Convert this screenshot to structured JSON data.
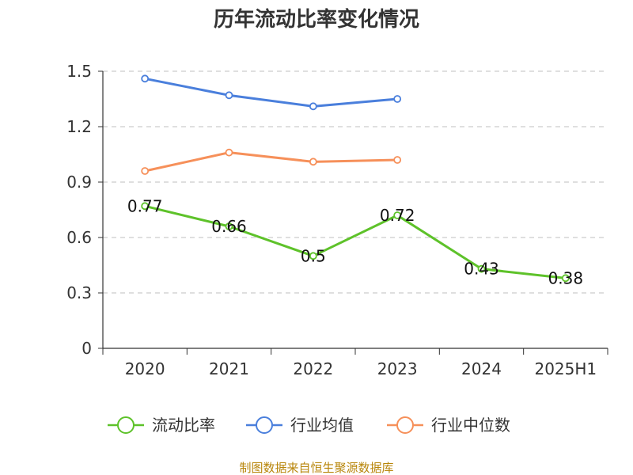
{
  "chart_data": {
    "type": "line",
    "title": "历年流动比率变化情况",
    "categories": [
      "2020",
      "2021",
      "2022",
      "2023",
      "2024",
      "2025H1"
    ],
    "ylim": [
      0,
      1.5
    ],
    "yticks": [
      "0",
      "0.3",
      "0.6",
      "0.9",
      "1.2",
      "1.5"
    ],
    "grid": true,
    "legend_position": "bottom",
    "series": [
      {
        "name": "流动比率",
        "color": "#5ec22a",
        "values": [
          0.77,
          0.66,
          0.5,
          0.72,
          0.43,
          0.38
        ],
        "labels": [
          "0.77",
          "0.66",
          "0.5",
          "0.72",
          "0.43",
          "0.38"
        ]
      },
      {
        "name": "行业均值",
        "color": "#4a7fdc",
        "values": [
          1.46,
          1.37,
          1.31,
          1.35,
          null,
          null
        ]
      },
      {
        "name": "行业中位数",
        "color": "#f6905a",
        "values": [
          0.96,
          1.06,
          1.01,
          1.02,
          null,
          null
        ]
      }
    ],
    "source": "制图数据来自恒生聚源数据库"
  }
}
